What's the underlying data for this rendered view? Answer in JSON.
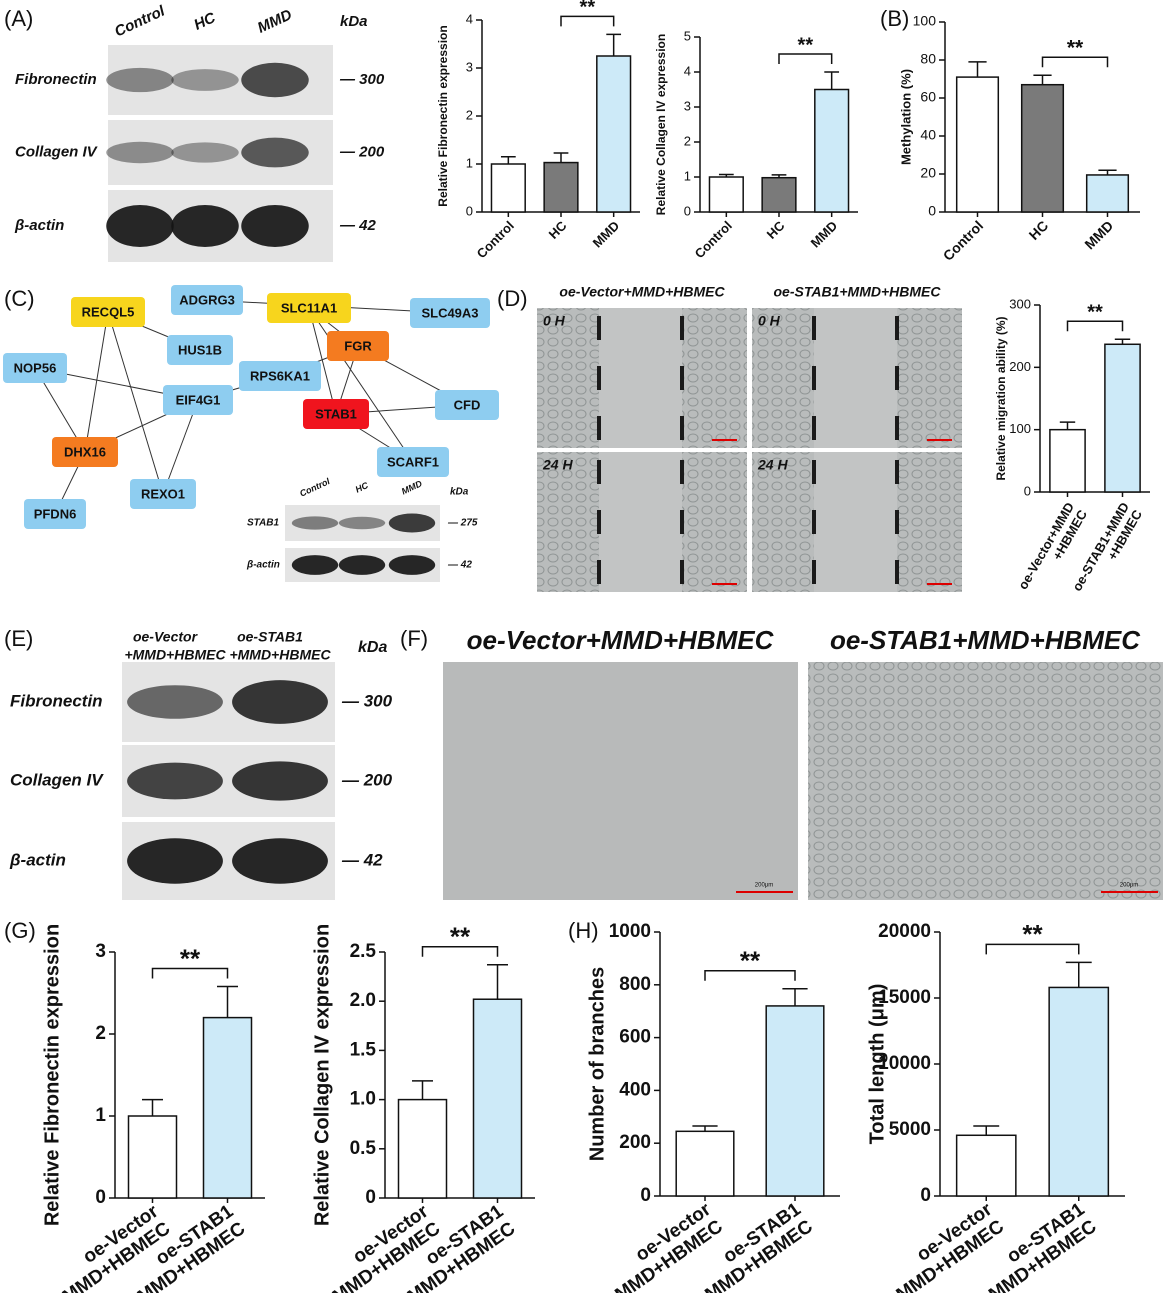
{
  "panel_labels": [
    "(A)",
    "(B)",
    "(C)",
    "(D)",
    "(E)",
    "(F)",
    "(G)",
    "(H)"
  ],
  "blot_a": {
    "lanes": [
      "Control",
      "HC",
      "MMD"
    ],
    "unit": "kDa",
    "rows": [
      {
        "protein": "Fibronectin",
        "size": "— 300"
      },
      {
        "protein": "Collagen IV",
        "size": "— 200"
      },
      {
        "protein": "β-actin",
        "size": "— 42"
      }
    ]
  },
  "network": {
    "nodes": [
      {
        "label": "ADGRG3",
        "color": "#8ecdf0"
      },
      {
        "label": "SLC11A1",
        "color": "#f7d51d"
      },
      {
        "label": "SLC49A3",
        "color": "#8ecdf0"
      },
      {
        "label": "RECQL5",
        "color": "#f7d51d"
      },
      {
        "label": "HUS1B",
        "color": "#8ecdf0"
      },
      {
        "label": "FGR",
        "color": "#f47b20"
      },
      {
        "label": "RPS6KA1",
        "color": "#8ecdf0"
      },
      {
        "label": "NOP56",
        "color": "#8ecdf0"
      },
      {
        "label": "EIF4G1",
        "color": "#8ecdf0"
      },
      {
        "label": "STAB1",
        "color": "#f0141e"
      },
      {
        "label": "CFD",
        "color": "#8ecdf0"
      },
      {
        "label": "DHX16",
        "color": "#f47b20"
      },
      {
        "label": "SCARF1",
        "color": "#8ecdf0"
      },
      {
        "label": "REXO1",
        "color": "#8ecdf0"
      },
      {
        "label": "PFDN6",
        "color": "#8ecdf0"
      }
    ]
  },
  "blot_c": {
    "lanes": [
      "Control",
      "HC",
      "MMD"
    ],
    "unit": "kDa",
    "rows": [
      {
        "protein": "STAB1",
        "size": "— 275"
      },
      {
        "protein": "β-actin",
        "size": "— 42"
      }
    ]
  },
  "migration": {
    "groups": [
      "oe-Vector+MMD+HBMEC",
      "oe-STAB1+MMD+HBMEC"
    ],
    "times": [
      "0 H",
      "24 H"
    ]
  },
  "blot_e": {
    "lanes": [
      [
        "oe-Vector",
        "+MMD+HBMEC"
      ],
      [
        "oe-STAB1",
        "+MMD+HBMEC"
      ]
    ],
    "unit": "kDa",
    "rows": [
      {
        "protein": "Fibronectin",
        "size": "— 300"
      },
      {
        "protein": "Collagen IV",
        "size": "— 200"
      },
      {
        "protein": "β-actin",
        "size": "— 42"
      }
    ]
  },
  "tube_formation": {
    "groups": [
      "oe-Vector+MMD+HBMEC",
      "oe-STAB1+MMD+HBMEC"
    ],
    "scale_bar": "200μm"
  },
  "chart_data": [
    {
      "type": "bar",
      "ylabel": "Relative Fibronectin expression",
      "categories": [
        "Control",
        "HC",
        "MMD"
      ],
      "values": [
        1.0,
        1.03,
        3.25
      ],
      "errors": [
        0.15,
        0.2,
        0.45
      ],
      "colors": [
        "#ffffff",
        "#7a7a7a",
        "#cdeaf8"
      ],
      "ylim": [
        0,
        4
      ],
      "yticks": [
        0,
        1,
        2,
        3,
        4
      ],
      "annotation": "**"
    },
    {
      "type": "bar",
      "ylabel": "Relative Collagen IV expression",
      "categories": [
        "Control",
        "HC",
        "MMD"
      ],
      "values": [
        1.0,
        0.98,
        3.5
      ],
      "errors": [
        0.07,
        0.08,
        0.5
      ],
      "colors": [
        "#ffffff",
        "#7a7a7a",
        "#cdeaf8"
      ],
      "ylim": [
        0,
        5
      ],
      "yticks": [
        0,
        1,
        2,
        3,
        4,
        5
      ],
      "annotation": "**"
    },
    {
      "type": "bar",
      "ylabel": "Methylation (%)",
      "categories": [
        "Control",
        "HC",
        "MMD"
      ],
      "values": [
        71,
        67,
        19.5
      ],
      "errors": [
        8,
        5,
        2.5
      ],
      "colors": [
        "#ffffff",
        "#7a7a7a",
        "#cdeaf8"
      ],
      "ylim": [
        0,
        100
      ],
      "yticks": [
        0,
        20,
        40,
        60,
        80,
        100
      ],
      "annotation": "**"
    },
    {
      "type": "bar",
      "ylabel": "Relative migration ability (%)",
      "categories": [
        [
          "oe-Vector+MMD",
          "+HBMEC"
        ],
        [
          "oe-STAB1+MMD",
          "+HBMEC"
        ]
      ],
      "values": [
        100,
        237
      ],
      "errors": [
        12,
        8
      ],
      "colors": [
        "#ffffff",
        "#cdeaf8"
      ],
      "ylim": [
        0,
        300
      ],
      "yticks": [
        0,
        100,
        200,
        300
      ],
      "annotation": "**"
    },
    {
      "type": "bar",
      "ylabel": "Relative Fibronectin expression",
      "categories": [
        [
          "oe-Vector",
          "+MMD+HBMEC"
        ],
        [
          "oe-STAB1",
          "+MMD+HBMEC"
        ]
      ],
      "values": [
        1.0,
        2.2
      ],
      "errors": [
        0.2,
        0.38
      ],
      "colors": [
        "#ffffff",
        "#cdeaf8"
      ],
      "ylim": [
        0,
        3
      ],
      "yticks": [
        0,
        1,
        2,
        3
      ],
      "annotation": "**"
    },
    {
      "type": "bar",
      "ylabel": "Relative Collagen IV expression",
      "categories": [
        [
          "oe-Vector",
          "+MMD+HBMEC"
        ],
        [
          "oe-STAB1",
          "+MMD+HBMEC"
        ]
      ],
      "values": [
        1.0,
        2.02
      ],
      "errors": [
        0.19,
        0.35
      ],
      "colors": [
        "#ffffff",
        "#cdeaf8"
      ],
      "ylim": [
        0,
        2.5
      ],
      "yticks": [
        0,
        0.5,
        {
          "value": 1,
          "label": "1.0"
        },
        1.5,
        {
          "value": 2,
          "label": "2.0"
        },
        2.5
      ],
      "annotation": "**"
    },
    {
      "type": "bar",
      "ylabel": "Number of branches",
      "categories": [
        [
          "oe-Vector",
          "+MMD+HBMEC"
        ],
        [
          "oe-STAB1",
          "+MMD+HBMEC"
        ]
      ],
      "values": [
        245,
        720
      ],
      "errors": [
        20,
        65
      ],
      "colors": [
        "#ffffff",
        "#cdeaf8"
      ],
      "ylim": [
        0,
        1000
      ],
      "yticks": [
        0,
        200,
        400,
        600,
        800,
        1000
      ],
      "annotation": "**"
    },
    {
      "type": "bar",
      "ylabel": "Total length (μm)",
      "categories": [
        [
          "oe-Vector",
          "+MMD+HBMEC"
        ],
        [
          "oe-STAB1",
          "+MMD+HBMEC"
        ]
      ],
      "values": [
        4600,
        15800
      ],
      "errors": [
        700,
        1900
      ],
      "colors": [
        "#ffffff",
        "#cdeaf8"
      ],
      "ylim": [
        0,
        20000
      ],
      "yticks": [
        0,
        5000,
        10000,
        15000,
        20000
      ],
      "annotation": "**"
    }
  ]
}
